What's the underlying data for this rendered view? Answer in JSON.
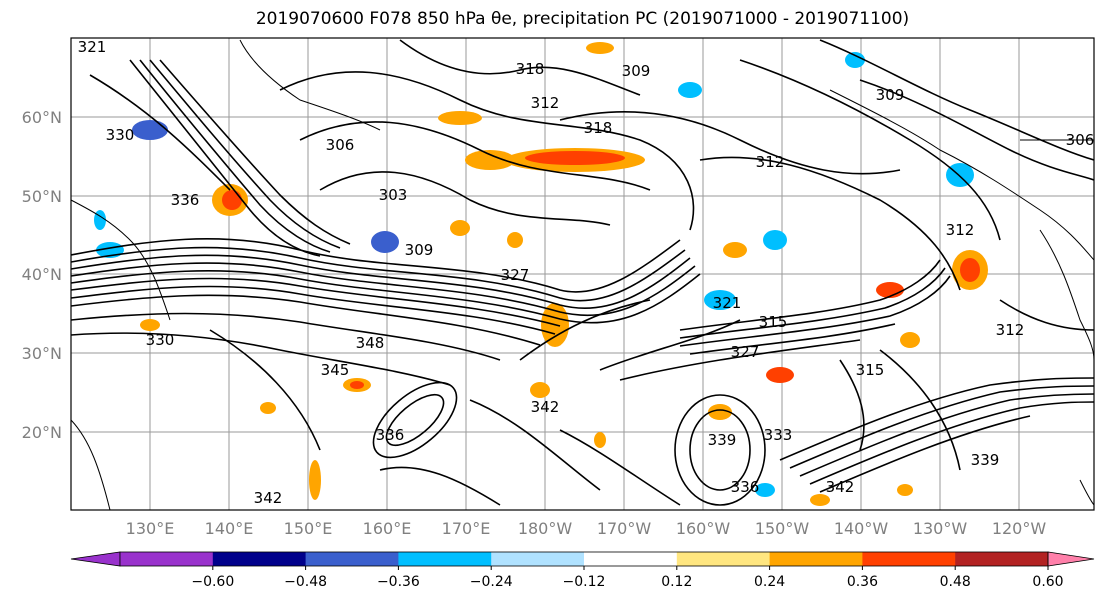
{
  "title": "2019070600 F078 850 hPa θe, precipitation PC (2019071000 - 2019071100)",
  "map": {
    "lat_ticks": [
      "60°N",
      "50°N",
      "40°N",
      "30°N",
      "20°N"
    ],
    "lon_ticks": [
      "130°E",
      "140°E",
      "150°E",
      "160°E",
      "170°E",
      "180°W",
      "170°W",
      "160°W",
      "150°W",
      "140°W",
      "130°W",
      "120°W"
    ],
    "contour_labels": [
      "321",
      "318",
      "309",
      "312",
      "318",
      "306",
      "303",
      "309",
      "327",
      "330",
      "336",
      "312",
      "321",
      "315",
      "327",
      "330",
      "342",
      "345",
      "348",
      "336",
      "342",
      "339",
      "333",
      "336",
      "342",
      "339",
      "315",
      "312",
      "309",
      "312",
      "306"
    ]
  },
  "colorbar": {
    "ticks": [
      "−0.60",
      "−0.48",
      "−0.36",
      "−0.24",
      "−0.12",
      "0.12",
      "0.24",
      "0.36",
      "0.48",
      "0.60"
    ],
    "colors": [
      "#9932CC",
      "#00008B",
      "#3A5FCD",
      "#00BFFF",
      "#B0E2FF",
      "#FFFFFF",
      "#FFE680",
      "#FFA500",
      "#FF4000",
      "#B22222",
      "#FF80AA"
    ]
  }
}
